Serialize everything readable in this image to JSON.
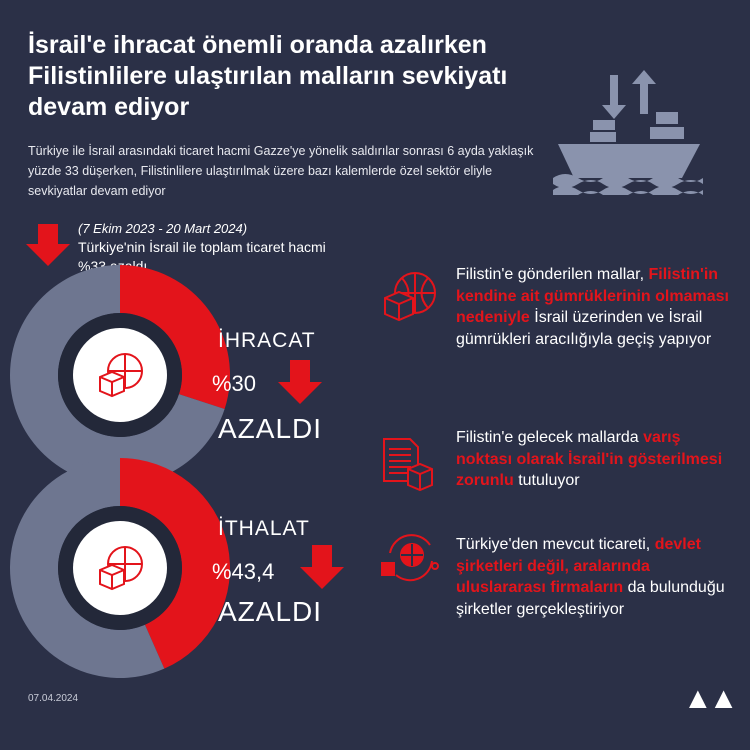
{
  "title": "İsrail'e ihracat önemli oranda azalırken Filistinlilere ulaştırılan malların sevkiyatı devam ediyor",
  "subtitle": "Türkiye ile İsrail arasındaki ticaret hacmi Gazze'ye yönelik saldırılar sonrası 6 ayda yaklaşık yüzde 33 düşerken, Filistinlilere ulaştırılmak üzere bazı kalemlerde özel sektör eliyle sevkiyatlar devam ediyor",
  "period": "(7 Ekim 2023 - 20 Mart 2024)",
  "total_text": "Türkiye'nin İsrail ile toplam ticaret hacmi %33 azaldı",
  "colors": {
    "background": "#2b3047",
    "accent": "#e3141b",
    "donut_rest": "#6e7690",
    "ship": "#8a93ad"
  },
  "export": {
    "label": "İHRACAT",
    "value": "%30",
    "status": "AZALDI"
  },
  "import": {
    "label": "İTHALAT",
    "value": "%43,4",
    "status": "AZALDI"
  },
  "chart_data": [
    {
      "type": "pie",
      "label": "İHRACAT",
      "values": [
        30,
        70
      ],
      "highlight_color": "#e3141b"
    },
    {
      "type": "pie",
      "label": "İTHALAT",
      "values": [
        43.4,
        56.6
      ],
      "highlight_color": "#e3141b"
    }
  ],
  "items": [
    {
      "icon": "globe-box-icon",
      "pre": "Filistin'e gönderilen mallar, ",
      "bold": "Filistin'in kendine ait gümrüklerinin olmaması nedeniyle",
      "post": " İsrail üzerinden ve İsrail gümrükleri aracılığıyla geçiş yapıyor"
    },
    {
      "icon": "documents-box-icon",
      "pre": "Filistin'e gelecek mallarda ",
      "bold": "varış noktası olarak İsrail'in gösterilmesi zorunlu",
      "post": " tutuluyor"
    },
    {
      "icon": "global-logistics-icon",
      "pre": "Türkiye'den mevcut ticareti, ",
      "bold": "devlet şirketleri değil, aralarında uluslararası firmaların",
      "post": " da bulunduğu şirketler gerçekleştiriyor"
    }
  ],
  "date": "07.04.2024",
  "logo": "AA"
}
